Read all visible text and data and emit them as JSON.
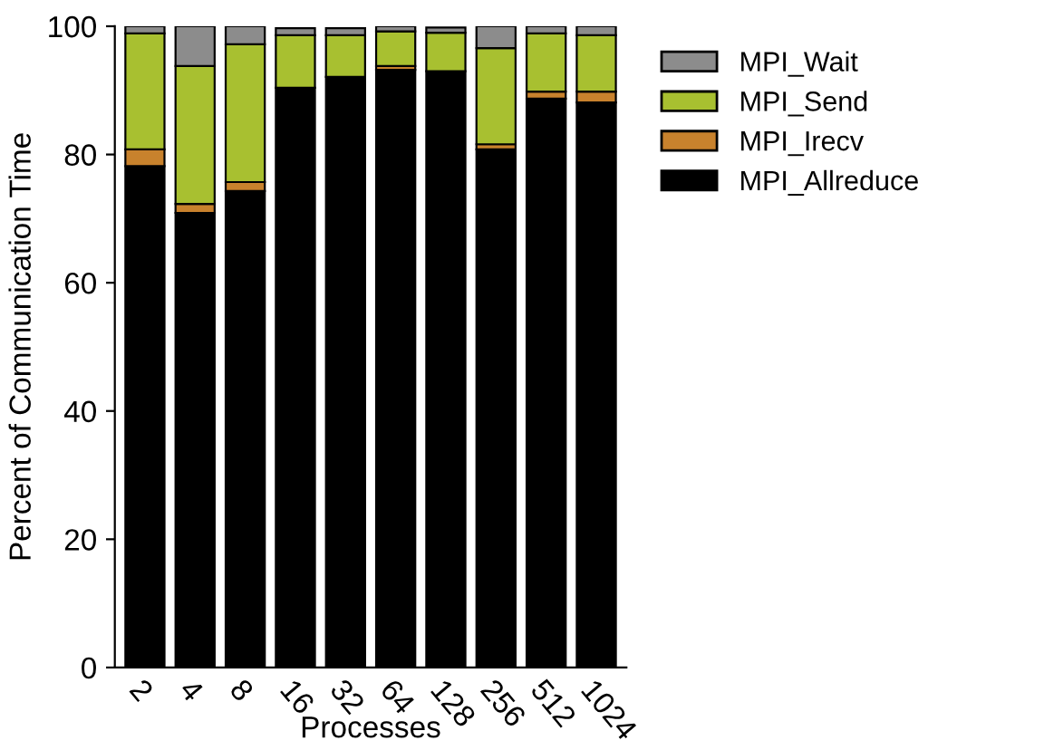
{
  "chart_data": {
    "type": "bar",
    "stacked": true,
    "xlabel": "Processes",
    "ylabel": "Percent of Communication Time",
    "categories": [
      "2",
      "4",
      "8",
      "16",
      "32",
      "64",
      "128",
      "256",
      "512",
      "1024"
    ],
    "series": [
      {
        "name": "MPI_Allreduce",
        "color": "#000000",
        "values": [
          78.2,
          70.9,
          74.3,
          90.4,
          92.1,
          93.2,
          93.0,
          80.8,
          88.7,
          88.1
        ]
      },
      {
        "name": "MPI_Irecv",
        "color": "#c8822d",
        "values": [
          2.6,
          1.4,
          1.4,
          null,
          null,
          0.6,
          null,
          0.8,
          1.1,
          1.7
        ]
      },
      {
        "name": "MPI_Send",
        "color": "#a8c030",
        "values": [
          18.1,
          21.5,
          21.5,
          8.2,
          6.5,
          5.4,
          6.0,
          15.0,
          9.1,
          8.8
        ]
      },
      {
        "name": "MPI_Wait",
        "color": "#8c8c8c",
        "values": [
          1.1,
          6.2,
          2.8,
          1.1,
          1.1,
          0.8,
          0.8,
          3.4,
          1.1,
          1.4
        ]
      }
    ],
    "ylim": [
      0,
      100
    ],
    "yticks": [
      0,
      20,
      40,
      60,
      80,
      100
    ],
    "grid": false,
    "legend": "top right"
  }
}
